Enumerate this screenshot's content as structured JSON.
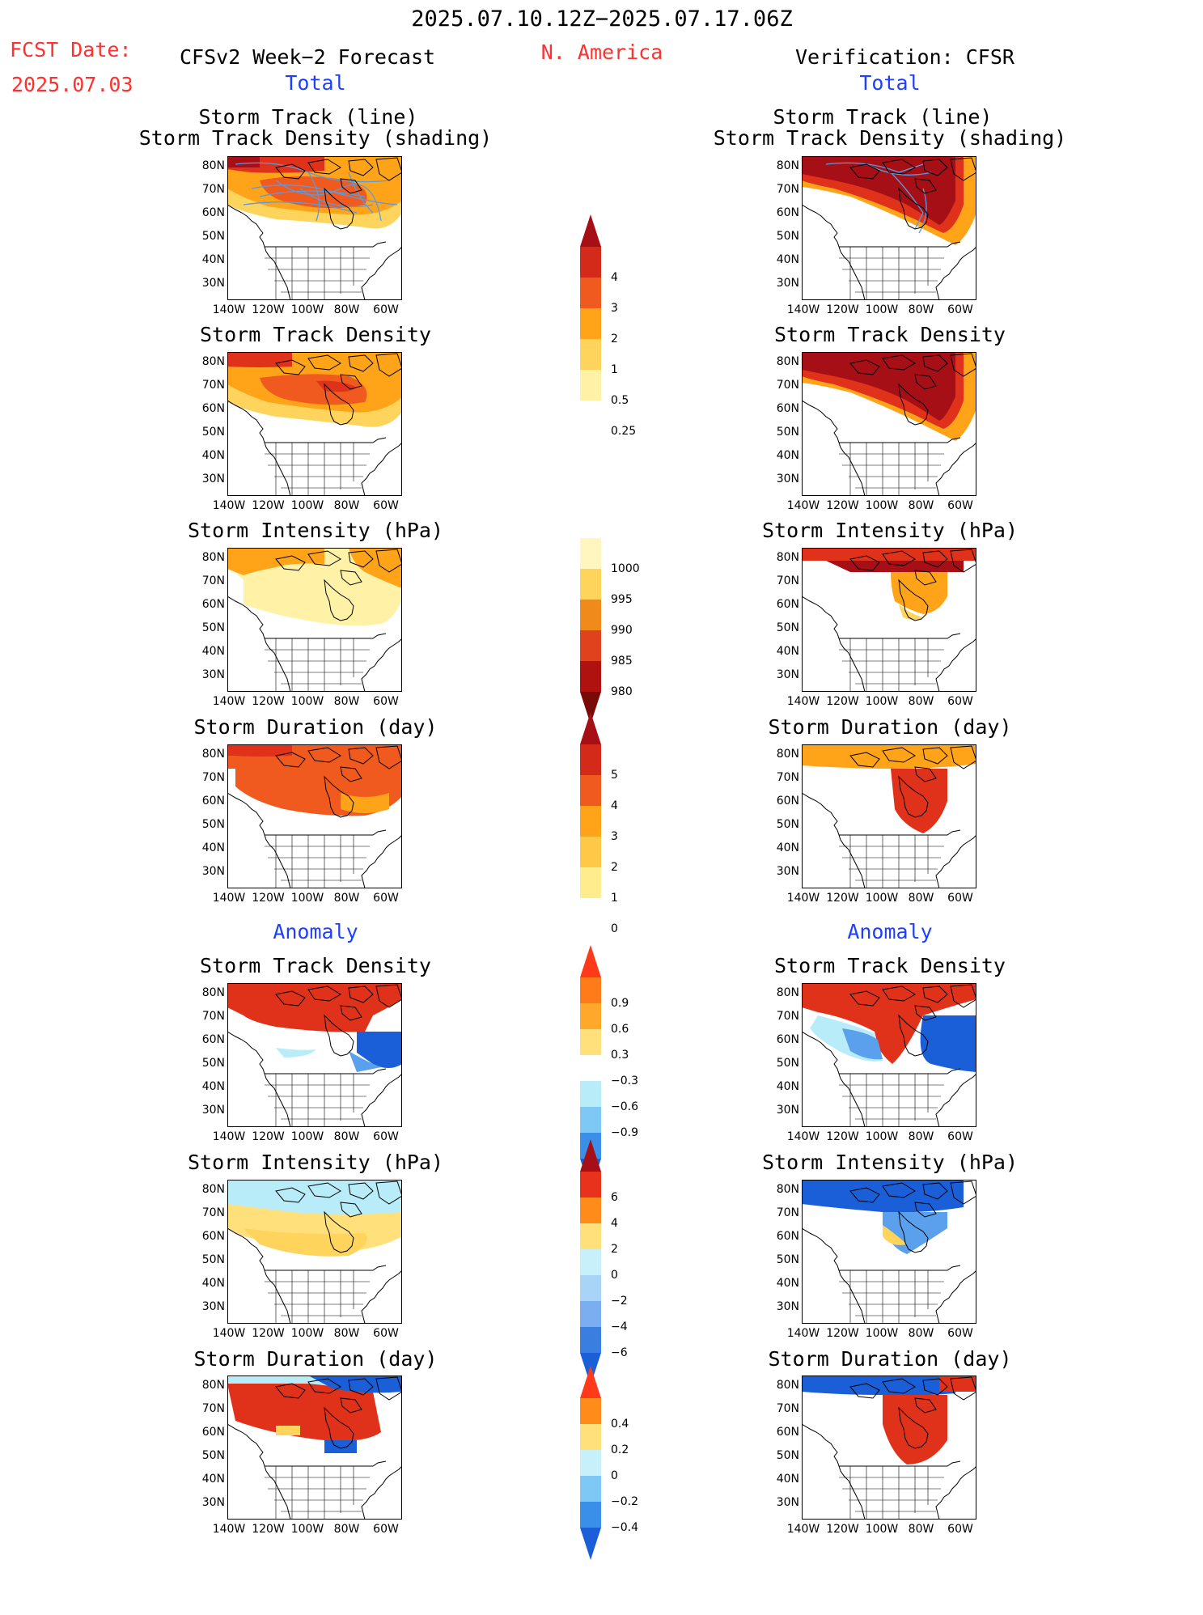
{
  "header": {
    "date_range": "2025.07.10.12Z−2025.07.17.06Z",
    "region": "N. America",
    "fcst_label": "FCST Date:",
    "fcst_date": "2025.07.03",
    "left_model": "CFSv2 Week−2 Forecast",
    "right_model": "Verification: CFSR",
    "left_section": "Total",
    "right_section": "Total",
    "left_anomaly": "Anomaly",
    "right_anomaly": "Anomaly"
  },
  "axes": {
    "lat_ticks": [
      "80N",
      "70N",
      "60N",
      "50N",
      "40N",
      "30N"
    ],
    "lon_ticks": [
      "140W",
      "120W",
      "100W",
      "80W",
      "60W"
    ]
  },
  "panel_titles": {
    "track_line": "Storm Track (line)",
    "track_density_shading": "Storm Track Density (shading)",
    "track_density": "Storm Track Density",
    "intensity": "Storm Intensity (hPa)",
    "duration": "Storm Duration (day)"
  },
  "colorbars": {
    "density_total": {
      "labels": [
        "4",
        "3",
        "2",
        "1",
        "0.5",
        "0.25"
      ],
      "colors": [
        "#a50f15",
        "#d42a1a",
        "#f05a1e",
        "#ffa319",
        "#ffd45c",
        "#fff2a6"
      ]
    },
    "intensity_total": {
      "labels": [
        "1000",
        "995",
        "990",
        "985",
        "980"
      ],
      "colors": [
        "#fff6bf",
        "#ffd45c",
        "#f08a1a",
        "#e0421e",
        "#b0130f",
        "#7a0a08"
      ]
    },
    "duration_total": {
      "labels": [
        "5",
        "4",
        "3",
        "2",
        "1",
        "0"
      ],
      "colors": [
        "#a50f15",
        "#d42a1a",
        "#f05a1e",
        "#ffa319",
        "#ffc847",
        "#ffec8c"
      ]
    },
    "density_anom": {
      "labels": [
        "0.9",
        "0.6",
        "0.3",
        "−0.3",
        "−0.6",
        "−0.9"
      ],
      "colors": [
        "#ff3a1a",
        "#ff7a18",
        "#ffa82a",
        "#ffe07a",
        "#ffffff",
        "#b8ecf8",
        "#7ec8f5",
        "#3a8fe8",
        "#1a5fd8"
      ]
    },
    "intensity_anom": {
      "labels": [
        "6",
        "4",
        "2",
        "0",
        "−2",
        "−4",
        "−6"
      ],
      "colors": [
        "#a50f15",
        "#e8321c",
        "#ff8c1a",
        "#ffe07a",
        "#c8f0fa",
        "#a8d4f8",
        "#7aaef0",
        "#3a7ee0",
        "#1a5fd8"
      ]
    },
    "duration_anom": {
      "labels": [
        "0.4",
        "0.2",
        "0",
        "−0.2",
        "−0.4"
      ],
      "colors": [
        "#ff3a1a",
        "#ff8c1a",
        "#ffe07a",
        "#c8f0fa",
        "#7ec8f5",
        "#3a8fe8",
        "#1a5fd8"
      ]
    }
  },
  "map_colors": {
    "deep_red": "#a50f15",
    "red": "#e0321a",
    "orange_red": "#f05a1e",
    "orange": "#ffa319",
    "light_orange": "#ffd45c",
    "pale_yellow": "#fff2a6",
    "track_line": "#5a9be0",
    "light_blue": "#b8ecf8",
    "mid_blue": "#5aa0ec",
    "dark_blue": "#1a5fd8"
  }
}
